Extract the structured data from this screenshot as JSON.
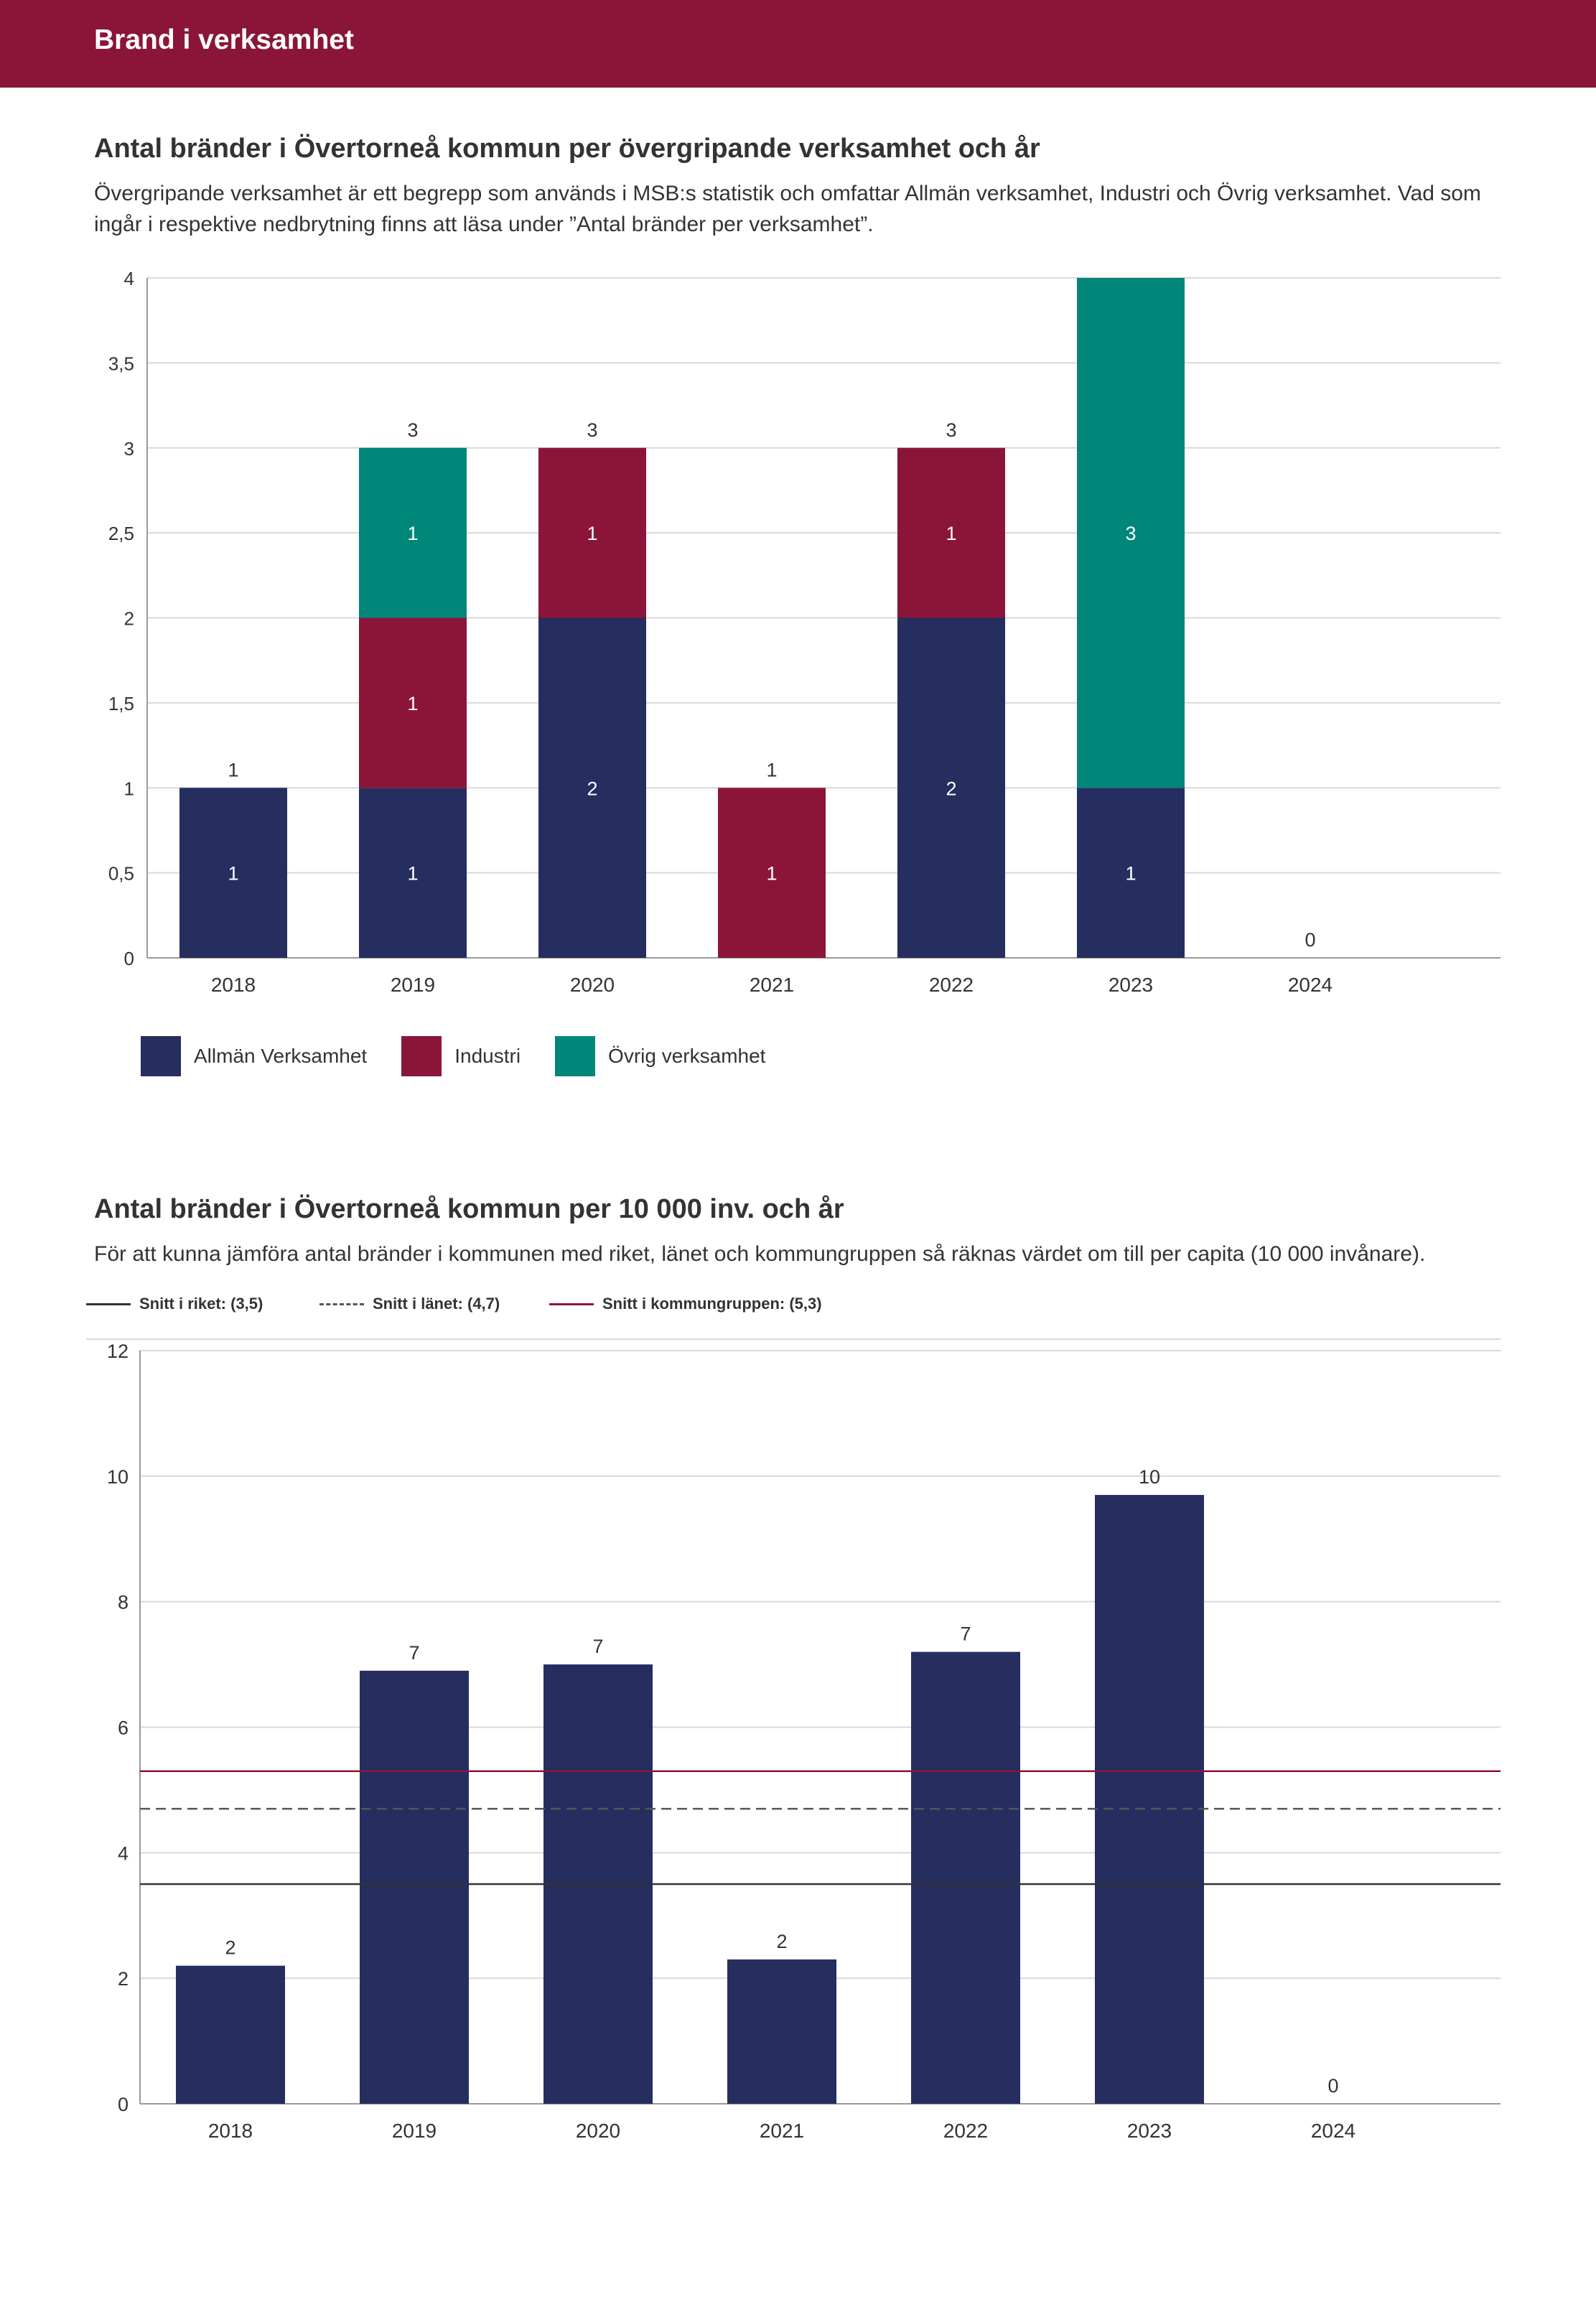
{
  "header": {
    "title": "Brand i verksamhet"
  },
  "section1": {
    "title": "Antal bränder i Övertorneå kommun per övergripande verksamhet och år",
    "description": "Övergripande verksamhet är ett begrepp som används i MSB:s statistik och omfattar Allmän verksamhet, Industri och Övrig verksamhet. Vad som ingår i respektive nedbrytning finns att läsa under ”Antal bränder per verksamhet”."
  },
  "section2": {
    "title": "Antal bränder i Övertorneå kommun per 10 000 inv. och år",
    "description": "För att kunna jämföra antal bränder i kommunen med riket, länet och kommungruppen så räknas värdet om till per capita (10 000 invånare)."
  },
  "colors": {
    "header": "#8b1538",
    "allman": "#262d5f",
    "industri": "#8b1538",
    "ovrig": "#00877a",
    "grid": "#d9d9d9",
    "axis": "#999999",
    "text": "#333333",
    "riket_line": "#333333",
    "lanet_line": "#555555",
    "kommungrupp_line": "#8b1538"
  },
  "chart_data": [
    {
      "type": "bar",
      "stacked": true,
      "title": "Antal bränder i Övertorneå kommun per övergripande verksamhet och år",
      "categories": [
        "2018",
        "2019",
        "2020",
        "2021",
        "2022",
        "2023",
        "2024"
      ],
      "series": [
        {
          "name": "Allmän Verksamhet",
          "color": "#262d5f",
          "values": [
            1,
            1,
            2,
            0,
            2,
            1,
            0
          ]
        },
        {
          "name": "Industri",
          "color": "#8b1538",
          "values": [
            0,
            1,
            1,
            1,
            1,
            0,
            0
          ]
        },
        {
          "name": "Övrig verksamhet",
          "color": "#00877a",
          "values": [
            0,
            1,
            0,
            0,
            0,
            3,
            0
          ]
        }
      ],
      "totals": [
        1,
        3,
        3,
        1,
        3,
        4,
        0
      ],
      "total_labels": [
        "1",
        "3",
        "3",
        "1",
        "3",
        "",
        "0"
      ],
      "segment_labels": [
        [
          "1",
          "",
          ""
        ],
        [
          "1",
          "1",
          "1"
        ],
        [
          "2",
          "1",
          ""
        ],
        [
          "",
          "1",
          ""
        ],
        [
          "2",
          "1",
          ""
        ],
        [
          "1",
          "",
          "3"
        ],
        [
          "",
          "",
          ""
        ]
      ],
      "yticks": [
        0,
        0.5,
        1,
        1.5,
        2,
        2.5,
        3,
        3.5,
        4
      ],
      "ytick_labels": [
        "0",
        "0,5",
        "1",
        "1,5",
        "2",
        "2,5",
        "3",
        "3,5",
        "4"
      ],
      "ylim": [
        0,
        4
      ],
      "legend": [
        "Allmän Verksamhet",
        "Industri",
        "Övrig verksamhet"
      ]
    },
    {
      "type": "bar",
      "title": "Antal bränder i Övertorneå kommun per 10 000 inv. och år",
      "categories": [
        "2018",
        "2019",
        "2020",
        "2021",
        "2022",
        "2023",
        "2024"
      ],
      "values": [
        2.2,
        6.9,
        7.0,
        2.3,
        7.2,
        9.7,
        0
      ],
      "value_labels": [
        "2",
        "7",
        "7",
        "2",
        "7",
        "10",
        "0"
      ],
      "yticks": [
        0,
        2,
        4,
        6,
        8,
        10,
        12
      ],
      "ytick_labels": [
        "0",
        "2",
        "4",
        "6",
        "8",
        "10",
        "12"
      ],
      "ylim": [
        0,
        12
      ],
      "reference_lines": [
        {
          "name": "Snitt i riket: (3,5)",
          "value": 3.5,
          "style": "solid",
          "color": "#333333"
        },
        {
          "name": "Snitt i länet: (4,7)",
          "value": 4.7,
          "style": "dashed",
          "color": "#555555"
        },
        {
          "name": "Snitt i kommungruppen: (5,3)",
          "value": 5.3,
          "style": "solid",
          "color": "#8b1538"
        }
      ]
    }
  ]
}
